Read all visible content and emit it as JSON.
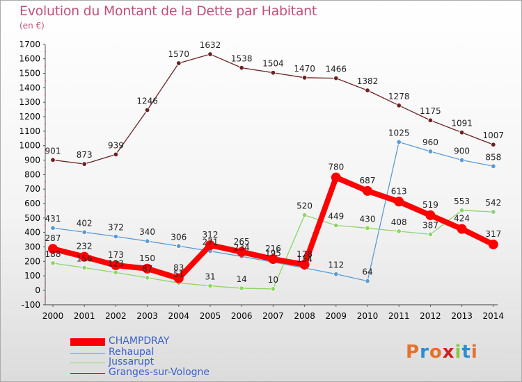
{
  "title": "Evolution du Montant de la Dette par Habitant",
  "unit": "(en €)",
  "logo": [
    "P",
    "r",
    "o",
    "x",
    "i",
    "t",
    "i"
  ],
  "logo_colors": [
    "#e8702a",
    "#2e8bd0",
    "#e8702a",
    "#d02020",
    "#8cc63f",
    "#2e8bd0",
    "#e8702a"
  ],
  "chart_data": {
    "type": "line",
    "title": "Evolution du Montant de la Dette par Habitant",
    "subtitle": "(en €)",
    "xlabel": "",
    "ylabel": "",
    "x": [
      "2000",
      "2001",
      "2002",
      "2003",
      "2004",
      "2005",
      "2006",
      "2007",
      "2008",
      "2009",
      "2010",
      "2011",
      "2012",
      "2013",
      "2014"
    ],
    "ylim": [
      -100,
      1700
    ],
    "yticks": [
      -100,
      0,
      100,
      200,
      300,
      400,
      500,
      600,
      700,
      800,
      900,
      1000,
      1100,
      1200,
      1300,
      1400,
      1500,
      1600,
      1700
    ],
    "grid": false,
    "legend_position": "bottom-left",
    "series": [
      {
        "name": "Granges-sur-Vologne",
        "color": "#6b2222",
        "values": [
          901,
          873,
          939,
          1246,
          1570,
          1632,
          1538,
          1504,
          1470,
          1466,
          1382,
          1278,
          1175,
          1091,
          1007
        ]
      },
      {
        "name": "Rehaupal",
        "color": "#5b9bd5",
        "values": [
          431,
          402,
          372,
          340,
          306,
          271,
          234,
          195,
          154,
          112,
          64,
          1025,
          960,
          900,
          858
        ]
      },
      {
        "name": "Jussarupt",
        "color": "#8dd46a",
        "values": [
          188,
          156,
          123,
          87,
          51,
          31,
          14,
          10,
          520,
          449,
          430,
          408,
          387,
          553,
          542
        ]
      },
      {
        "name": "CHAMPDRAY",
        "color": "#ff0000",
        "values": [
          287,
          232,
          173,
          150,
          83,
          312,
          265,
          216,
          178,
          780,
          687,
          613,
          519,
          424,
          317
        ]
      }
    ],
    "legend": [
      "CHAMPDRAY",
      "Rehaupal",
      "Jussarupt",
      "Granges-sur-Vologne"
    ]
  }
}
